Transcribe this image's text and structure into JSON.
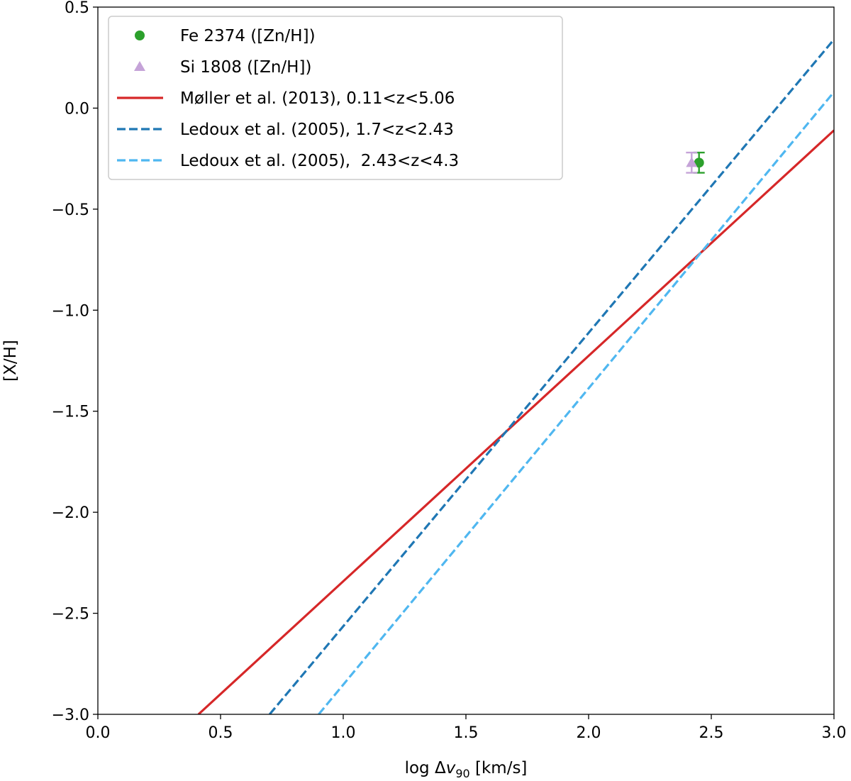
{
  "chart_data": {
    "type": "scatter",
    "title": "",
    "xlabel_prefix": "log Δ",
    "xlabel_var": "v",
    "xlabel_sub": "90",
    "xlabel_suffix": " [km/s]",
    "ylabel": "[X/H]",
    "xlim": [
      0.0,
      3.0
    ],
    "ylim": [
      -3.0,
      0.5
    ],
    "xticks": [
      0.0,
      0.5,
      1.0,
      1.5,
      2.0,
      2.5,
      3.0
    ],
    "xtick_labels": [
      "0.0",
      "0.5",
      "1.0",
      "1.5",
      "2.0",
      "2.5",
      "3.0"
    ],
    "yticks": [
      0.5,
      0.0,
      -0.5,
      -1.0,
      -1.5,
      -2.0,
      -2.5,
      -3.0
    ],
    "ytick_labels": [
      "0.5",
      "0.0",
      "−0.5",
      "−1.0",
      "−1.5",
      "−2.0",
      "−2.5",
      "−3.0"
    ],
    "grid": false,
    "legend_position": "upper-left",
    "points": [
      {
        "name": "Fe 2374 ([Zn/H])",
        "marker": "circle",
        "color": "#2ca02c",
        "x": 2.45,
        "y": -0.27,
        "yerr": 0.05
      },
      {
        "name": "Si 1808 ([Zn/H])",
        "marker": "triangle",
        "color": "#c5a3d8",
        "x": 2.42,
        "y": -0.27,
        "yerr": 0.05
      }
    ],
    "lines": [
      {
        "name": "Møller et al. (2013), 0.11<z<5.06",
        "style": "solid",
        "color": "#d62728",
        "x": [
          0.41,
          3.0
        ],
        "y": [
          -3.0,
          -0.11
        ]
      },
      {
        "name": "Ledoux et al. (2005), 1.7<z<2.43",
        "style": "dashed",
        "color": "#1f77b4",
        "x": [
          0.7,
          3.0
        ],
        "y": [
          -3.0,
          0.34
        ]
      },
      {
        "name": "Ledoux et al. (2005),  2.43<z<4.3",
        "style": "dashed",
        "color": "#4fb7f0",
        "x": [
          0.9,
          3.0
        ],
        "y": [
          -3.0,
          0.08
        ]
      }
    ]
  }
}
